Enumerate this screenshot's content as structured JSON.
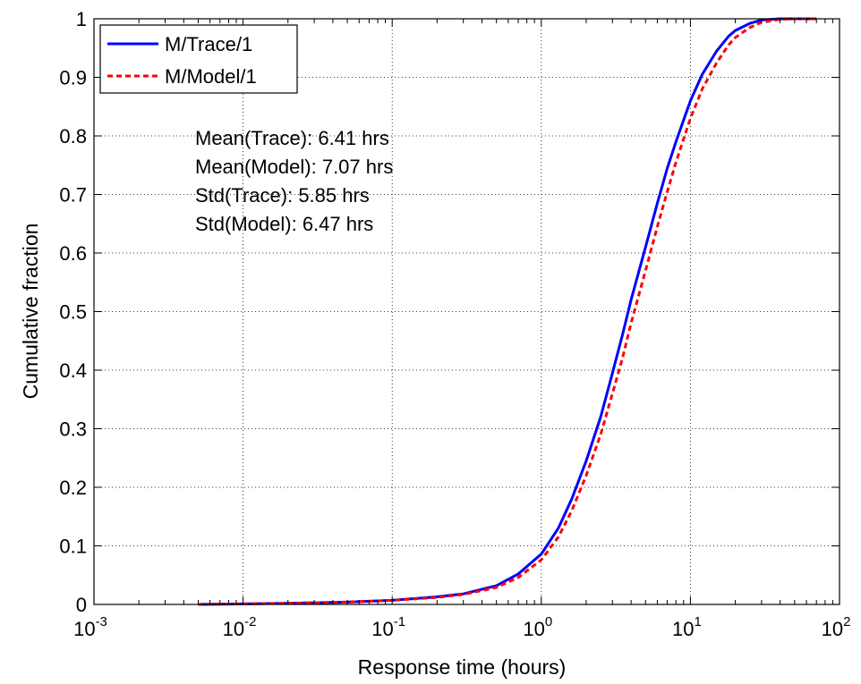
{
  "chart_data": {
    "type": "line",
    "xscale": "log",
    "xlim": [
      0.001,
      100
    ],
    "ylim": [
      0,
      1
    ],
    "grid": true,
    "xlabel": "Response time (hours)",
    "ylabel": "Cumulative fraction",
    "x_ticks": [
      {
        "value": 0.001,
        "base": "10",
        "exp": "-3"
      },
      {
        "value": 0.01,
        "base": "10",
        "exp": "-2"
      },
      {
        "value": 0.1,
        "base": "10",
        "exp": "-1"
      },
      {
        "value": 1,
        "base": "10",
        "exp": "0"
      },
      {
        "value": 10,
        "base": "10",
        "exp": "1"
      },
      {
        "value": 100,
        "base": "10",
        "exp": "2"
      }
    ],
    "y_ticks": [
      {
        "value": 0,
        "label": "0"
      },
      {
        "value": 0.1,
        "label": "0.1"
      },
      {
        "value": 0.2,
        "label": "0.2"
      },
      {
        "value": 0.3,
        "label": "0.3"
      },
      {
        "value": 0.4,
        "label": "0.4"
      },
      {
        "value": 0.5,
        "label": "0.5"
      },
      {
        "value": 0.6,
        "label": "0.6"
      },
      {
        "value": 0.7,
        "label": "0.7"
      },
      {
        "value": 0.8,
        "label": "0.8"
      },
      {
        "value": 0.9,
        "label": "0.9"
      },
      {
        "value": 1,
        "label": "1"
      }
    ],
    "legend_position": "top-left",
    "series": [
      {
        "name": "M/Trace/1",
        "color": "#0000ff",
        "style": "solid",
        "x": [
          0.005,
          0.01,
          0.02,
          0.05,
          0.1,
          0.2,
          0.3,
          0.5,
          0.7,
          1,
          1.3,
          1.6,
          2,
          2.5,
          3,
          3.5,
          4,
          5,
          6,
          7,
          8,
          10,
          12,
          15,
          18,
          20,
          25,
          30,
          40,
          50,
          70
        ],
        "y": [
          0.0,
          0.001,
          0.002,
          0.004,
          0.007,
          0.013,
          0.018,
          0.032,
          0.052,
          0.086,
          0.13,
          0.18,
          0.245,
          0.32,
          0.395,
          0.46,
          0.52,
          0.61,
          0.685,
          0.745,
          0.79,
          0.86,
          0.905,
          0.945,
          0.97,
          0.98,
          0.992,
          0.998,
          1.0,
          1.0,
          1.0
        ]
      },
      {
        "name": "M/Model/1",
        "color": "#ff0000",
        "style": "dashed",
        "x": [
          0.005,
          0.01,
          0.02,
          0.05,
          0.1,
          0.2,
          0.3,
          0.5,
          0.7,
          1,
          1.3,
          1.6,
          2,
          2.5,
          3,
          3.5,
          4,
          5,
          6,
          7,
          8,
          10,
          12,
          15,
          18,
          20,
          25,
          30,
          40,
          50,
          70
        ],
        "y": [
          0.0,
          0.001,
          0.002,
          0.004,
          0.007,
          0.012,
          0.017,
          0.029,
          0.046,
          0.076,
          0.115,
          0.16,
          0.22,
          0.29,
          0.36,
          0.42,
          0.48,
          0.57,
          0.645,
          0.705,
          0.755,
          0.83,
          0.88,
          0.925,
          0.955,
          0.968,
          0.985,
          0.994,
          0.999,
          1.0,
          1.0
        ]
      }
    ],
    "annotations": [
      "Mean(Trace): 6.41 hrs",
      "Mean(Model): 7.07 hrs",
      "Std(Trace): 5.85 hrs",
      "Std(Model): 6.47 hrs"
    ]
  }
}
